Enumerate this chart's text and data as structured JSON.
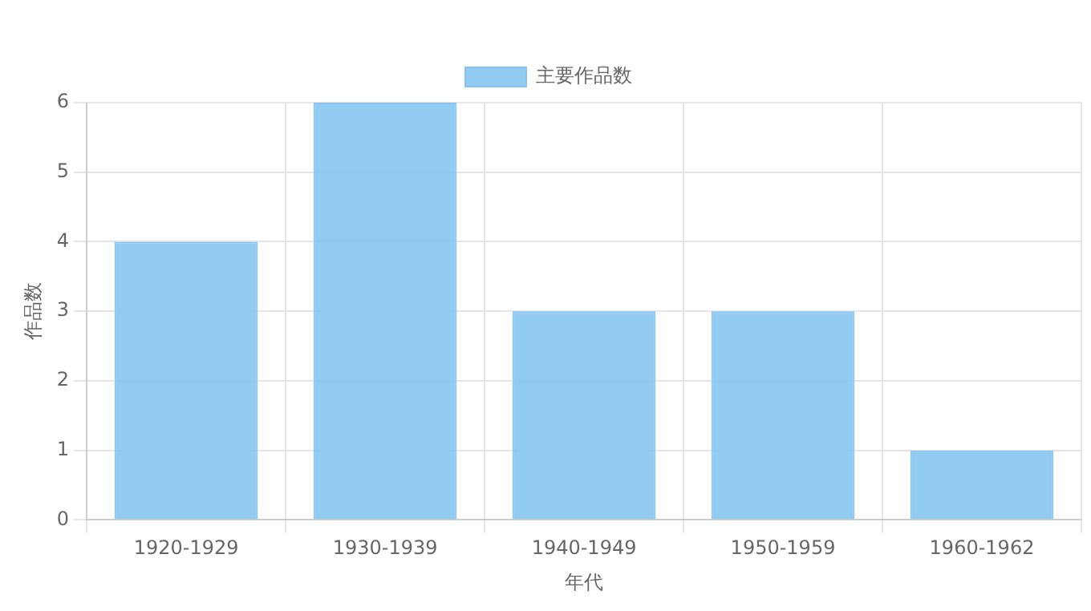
{
  "chart_data": {
    "type": "bar",
    "xlabel": "年代",
    "ylabel": "作品数",
    "categories": [
      "1920-1929",
      "1930-1939",
      "1940-1949",
      "1950-1959",
      "1960-1962"
    ],
    "series": [
      {
        "name": "主要作品数",
        "color": "#86c5f1",
        "values": [
          4,
          6,
          3,
          3,
          1
        ]
      }
    ],
    "ylim": [
      0,
      6
    ],
    "yticks": [
      0,
      1,
      2,
      3,
      4,
      5,
      6
    ],
    "grid": true,
    "legend": "top"
  }
}
